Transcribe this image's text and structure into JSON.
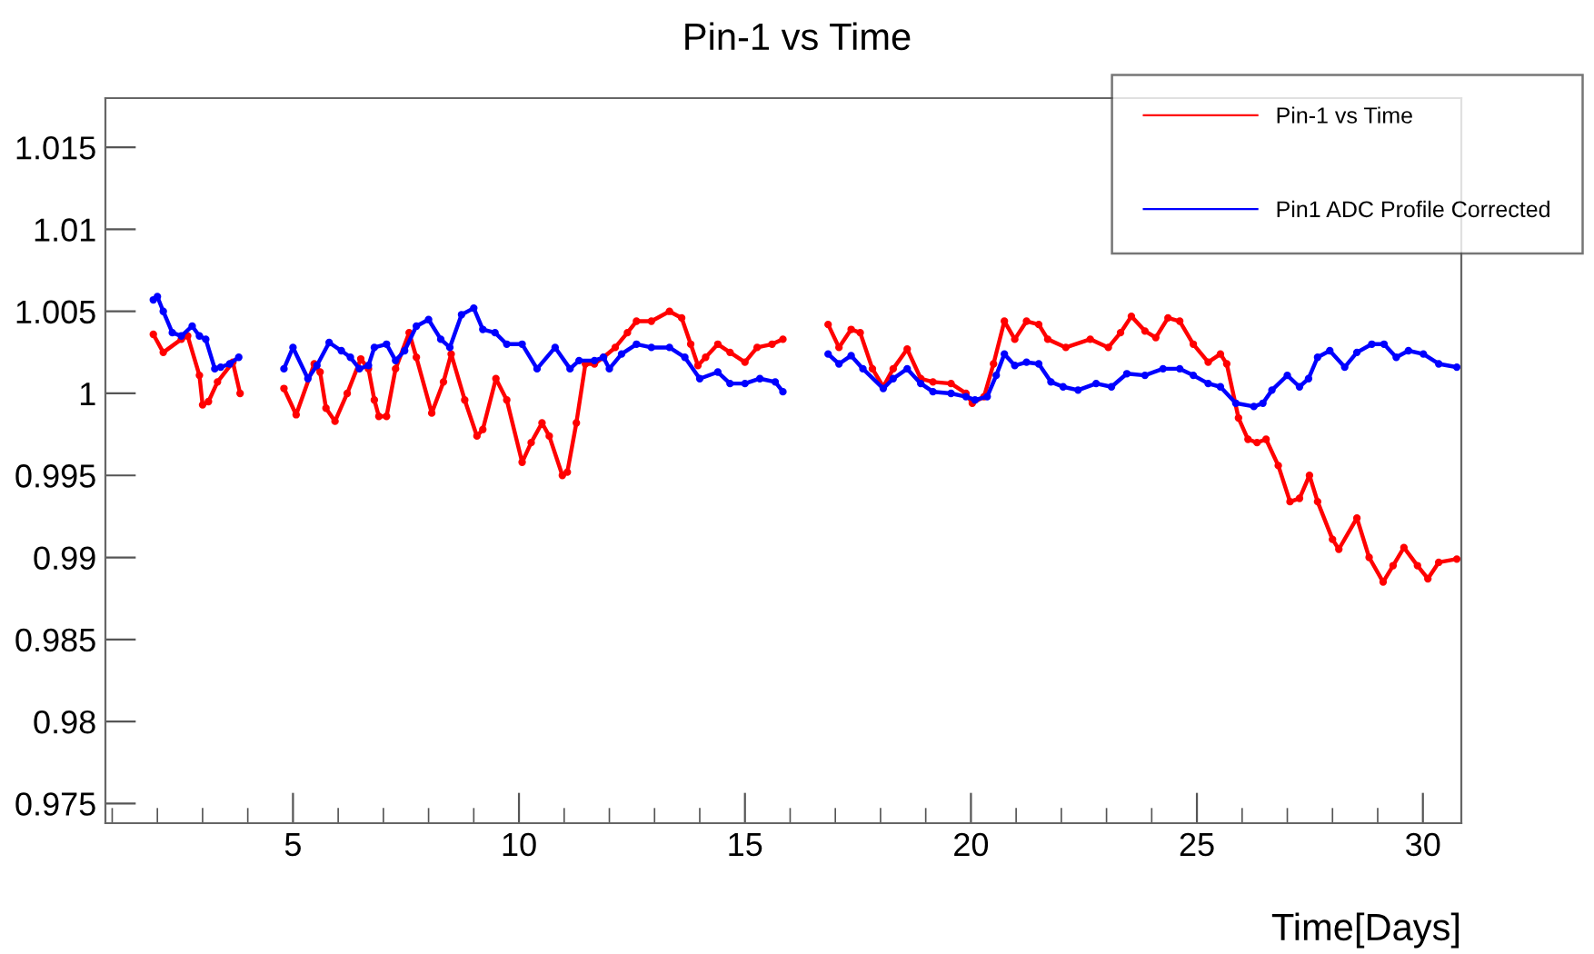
{
  "chart_data": {
    "type": "line",
    "title": "Pin-1 vs Time",
    "xlabel": "Time[Days]",
    "xlim": [
      0.85,
      30.85
    ],
    "ylim": [
      0.9738,
      1.018
    ],
    "xticks": [
      5,
      10,
      15,
      20,
      25,
      30
    ],
    "yticks": [
      0.975,
      0.98,
      0.985,
      0.99,
      0.995,
      1,
      1.005,
      1.01,
      1.015
    ],
    "grid": false,
    "legend": "top right",
    "line_style": "solid",
    "marker": "circle",
    "series": [
      {
        "name": "Pin-1 vs Time",
        "color": "#ff0000",
        "x": [
          1.91,
          2.13,
          2.53,
          2.67,
          2.93,
          3.0,
          3.13,
          3.33,
          3.67,
          3.83,
          4.3,
          4.8,
          5.07,
          5.47,
          5.6,
          5.73,
          5.93,
          6.2,
          6.5,
          6.67,
          6.8,
          6.9,
          7.07,
          7.27,
          7.57,
          7.73,
          8.07,
          8.33,
          8.5,
          8.8,
          9.07,
          9.2,
          9.49,
          9.73,
          10.07,
          10.27,
          10.51,
          10.67,
          10.96,
          11.07,
          11.27,
          11.47,
          11.67,
          11.87,
          12.13,
          12.4,
          12.6,
          12.93,
          13.33,
          13.6,
          13.8,
          13.96,
          14.13,
          14.4,
          14.67,
          15.0,
          15.27,
          15.6,
          15.84,
          16.3,
          16.84,
          17.08,
          17.35,
          17.55,
          17.82,
          18.06,
          18.28,
          18.59,
          18.89,
          19.16,
          19.56,
          19.89,
          20.03,
          20.29,
          20.5,
          20.74,
          20.97,
          21.23,
          21.5,
          21.7,
          22.1,
          22.64,
          23.04,
          23.31,
          23.55,
          23.85,
          24.09,
          24.36,
          24.62,
          24.92,
          25.25,
          25.52,
          25.66,
          25.92,
          26.13,
          26.33,
          26.53,
          26.8,
          27.06,
          27.27,
          27.49,
          27.67,
          28.0,
          28.14,
          28.54,
          28.81,
          29.12,
          29.34,
          29.58,
          29.88,
          30.11,
          30.35,
          30.75
        ],
        "values": [
          1.0036,
          1.0025,
          1.0033,
          1.0035,
          1.0011,
          0.9993,
          0.9995,
          1.0007,
          1.0019,
          1.0,
          null,
          1.0003,
          0.9987,
          1.0018,
          1.0013,
          0.9991,
          0.9983,
          1.0,
          1.0021,
          1.0015,
          0.9996,
          0.9986,
          0.9986,
          1.0015,
          1.0037,
          1.0022,
          0.9988,
          1.0007,
          1.0024,
          0.9996,
          0.9974,
          0.9978,
          1.0009,
          0.9996,
          0.9958,
          0.997,
          0.9982,
          0.9974,
          0.995,
          0.9952,
          0.9982,
          1.0018,
          1.0018,
          1.0022,
          1.0028,
          1.0037,
          1.0044,
          1.0044,
          1.005,
          1.0046,
          1.003,
          1.0017,
          1.0022,
          1.003,
          1.0025,
          1.0019,
          1.0028,
          1.003,
          1.0033,
          null,
          1.0042,
          1.0028,
          1.0039,
          1.0037,
          1.0015,
          1.0004,
          1.0015,
          1.0027,
          1.0009,
          1.0007,
          1.0006,
          1.0,
          0.9994,
          0.9998,
          1.0018,
          1.0044,
          1.0033,
          1.0044,
          1.0042,
          1.0033,
          1.0028,
          1.0033,
          1.0028,
          1.0037,
          1.0047,
          1.0038,
          1.0034,
          1.0046,
          1.0044,
          1.003,
          1.0019,
          1.0024,
          1.0018,
          0.9985,
          0.9972,
          0.997,
          0.9972,
          0.9956,
          0.9934,
          0.9936,
          0.995,
          0.9934,
          0.9911,
          0.9905,
          0.9924,
          0.99,
          0.9885,
          0.9895,
          0.9906,
          0.9895,
          0.9887,
          0.9897,
          0.9899
        ]
      },
      {
        "name": "Pin1 ADC Profile Corrected",
        "color": "#0000ff",
        "x": [
          1.91,
          2.0,
          2.13,
          2.33,
          2.53,
          2.77,
          2.93,
          3.07,
          3.27,
          3.4,
          3.6,
          3.8,
          4.3,
          4.8,
          5.0,
          5.33,
          5.53,
          5.8,
          6.07,
          6.27,
          6.47,
          6.67,
          6.8,
          7.07,
          7.27,
          7.47,
          7.73,
          8.0,
          8.27,
          8.47,
          8.73,
          9.0,
          9.2,
          9.47,
          9.73,
          10.07,
          10.4,
          10.8,
          11.13,
          11.33,
          11.67,
          11.87,
          12.0,
          12.27,
          12.6,
          12.93,
          13.33,
          13.67,
          14.0,
          14.4,
          14.67,
          15.0,
          15.33,
          15.67,
          15.84,
          16.3,
          16.84,
          17.08,
          17.35,
          17.61,
          18.06,
          18.28,
          18.59,
          18.89,
          19.16,
          19.56,
          19.89,
          20.09,
          20.36,
          20.56,
          20.74,
          20.97,
          21.23,
          21.5,
          21.77,
          22.04,
          22.37,
          22.77,
          23.11,
          23.45,
          23.85,
          24.25,
          24.62,
          24.92,
          25.25,
          25.52,
          25.86,
          26.26,
          26.46,
          26.66,
          27.0,
          27.27,
          27.47,
          27.67,
          27.94,
          28.27,
          28.54,
          28.87,
          29.14,
          29.41,
          29.68,
          30.01,
          30.35,
          30.75
        ],
        "values": [
          1.0057,
          1.0059,
          1.005,
          1.0037,
          1.0035,
          1.0041,
          1.0035,
          1.0033,
          1.0015,
          1.0016,
          1.0018,
          1.0022,
          null,
          1.0015,
          1.0028,
          1.0009,
          1.0017,
          1.0031,
          1.0026,
          1.0022,
          1.0015,
          1.0017,
          1.0028,
          1.003,
          1.002,
          1.0026,
          1.0041,
          1.0045,
          1.0033,
          1.0028,
          1.0048,
          1.0052,
          1.0039,
          1.0037,
          1.003,
          1.003,
          1.0015,
          1.0028,
          1.0015,
          1.002,
          1.002,
          1.0022,
          1.0015,
          1.0024,
          1.003,
          1.0028,
          1.0028,
          1.0022,
          1.0009,
          1.0013,
          1.0006,
          1.0006,
          1.0009,
          1.0007,
          1.0001,
          null,
          1.0024,
          1.0018,
          1.0023,
          1.0015,
          1.0003,
          1.0009,
          1.0015,
          1.0006,
          1.0001,
          1.0,
          0.9998,
          0.9996,
          0.9998,
          1.0011,
          1.0024,
          1.0017,
          1.0019,
          1.0018,
          1.0007,
          1.0004,
          1.0002,
          1.0006,
          1.0004,
          1.0012,
          1.0011,
          1.0015,
          1.0015,
          1.0011,
          1.0006,
          1.0004,
          0.9994,
          0.9992,
          0.9994,
          1.0002,
          1.0011,
          1.0004,
          1.0009,
          1.0022,
          1.0026,
          1.0016,
          1.0025,
          1.003,
          1.003,
          1.0022,
          1.0026,
          1.0024,
          1.0018,
          1.0016
        ]
      }
    ]
  }
}
